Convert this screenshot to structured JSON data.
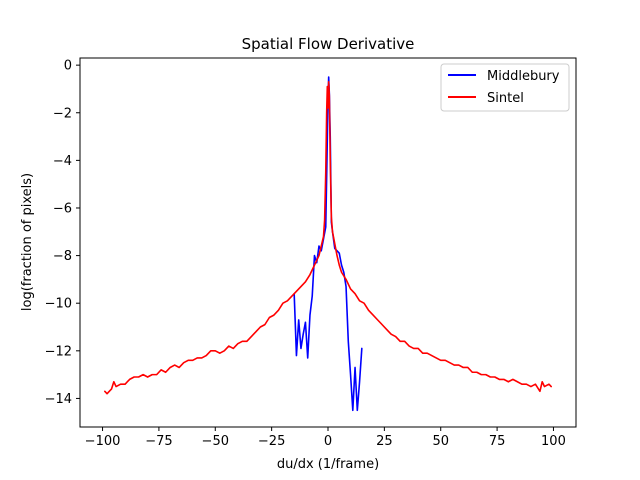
{
  "chart_data": {
    "type": "line",
    "title": "Spatial Flow Derivative",
    "xlabel": "du/dx (1/frame)",
    "ylabel": "log(fraction of pixels)",
    "xlim": [
      -110,
      110
    ],
    "ylim": [
      -15.2,
      0.3
    ],
    "xticks": [
      -100,
      -75,
      -50,
      -25,
      0,
      25,
      50,
      75,
      100
    ],
    "xtick_labels": [
      "−100",
      "−75",
      "−50",
      "−25",
      "0",
      "25",
      "50",
      "75",
      "100"
    ],
    "yticks": [
      0,
      -2,
      -4,
      -6,
      -8,
      -10,
      -12,
      -14
    ],
    "ytick_labels": [
      "0",
      "−2",
      "−4",
      "−6",
      "−8",
      "−10",
      "−12",
      "−14"
    ],
    "grid": false,
    "legend_position": "top-right",
    "series": [
      {
        "name": "Middlebury",
        "color": "#0000ff",
        "points": [
          [
            -15,
            -9.6
          ],
          [
            -14,
            -12.2
          ],
          [
            -13,
            -10.7
          ],
          [
            -12,
            -11.9
          ],
          [
            -11,
            -11.3
          ],
          [
            -10,
            -10.8
          ],
          [
            -9,
            -12.3
          ],
          [
            -8,
            -10.5
          ],
          [
            -7,
            -9.7
          ],
          [
            -6,
            -8.0
          ],
          [
            -5,
            -8.3
          ],
          [
            -4,
            -7.6
          ],
          [
            -3,
            -7.8
          ],
          [
            -2,
            -7.3
          ],
          [
            -1,
            -6.8
          ],
          [
            -0.5,
            -4.2
          ],
          [
            0,
            -1.4
          ],
          [
            0.3,
            -0.5
          ],
          [
            0.6,
            -1.2
          ],
          [
            1,
            -3.0
          ],
          [
            1.5,
            -6.6
          ],
          [
            2,
            -7.0
          ],
          [
            3,
            -7.7
          ],
          [
            4,
            -7.8
          ],
          [
            5,
            -7.9
          ],
          [
            6,
            -8.4
          ],
          [
            7,
            -8.7
          ],
          [
            8,
            -9.3
          ],
          [
            9,
            -11.6
          ],
          [
            10,
            -13.0
          ],
          [
            11,
            -14.5
          ],
          [
            12,
            -12.7
          ],
          [
            13,
            -14.5
          ],
          [
            14,
            -13.3
          ],
          [
            15,
            -11.9
          ]
        ]
      },
      {
        "name": "Sintel",
        "color": "#ff0000",
        "points": [
          [
            -99,
            -13.7
          ],
          [
            -98,
            -13.8
          ],
          [
            -96,
            -13.6
          ],
          [
            -95,
            -13.3
          ],
          [
            -94,
            -13.5
          ],
          [
            -92,
            -13.4
          ],
          [
            -90,
            -13.4
          ],
          [
            -88,
            -13.2
          ],
          [
            -86,
            -13.1
          ],
          [
            -84,
            -13.1
          ],
          [
            -82,
            -13.0
          ],
          [
            -80,
            -13.1
          ],
          [
            -78,
            -13.0
          ],
          [
            -76,
            -13.0
          ],
          [
            -74,
            -12.8
          ],
          [
            -72,
            -12.9
          ],
          [
            -70,
            -12.7
          ],
          [
            -68,
            -12.6
          ],
          [
            -66,
            -12.7
          ],
          [
            -64,
            -12.5
          ],
          [
            -62,
            -12.4
          ],
          [
            -60,
            -12.4
          ],
          [
            -58,
            -12.3
          ],
          [
            -56,
            -12.3
          ],
          [
            -54,
            -12.2
          ],
          [
            -52,
            -12.0
          ],
          [
            -50,
            -12.0
          ],
          [
            -48,
            -12.1
          ],
          [
            -46,
            -12.0
          ],
          [
            -44,
            -11.8
          ],
          [
            -42,
            -11.9
          ],
          [
            -40,
            -11.7
          ],
          [
            -38,
            -11.6
          ],
          [
            -36,
            -11.6
          ],
          [
            -34,
            -11.4
          ],
          [
            -32,
            -11.2
          ],
          [
            -30,
            -11.0
          ],
          [
            -28,
            -10.9
          ],
          [
            -26,
            -10.6
          ],
          [
            -24,
            -10.5
          ],
          [
            -22,
            -10.3
          ],
          [
            -20,
            -10.0
          ],
          [
            -18,
            -9.9
          ],
          [
            -16,
            -9.7
          ],
          [
            -14,
            -9.5
          ],
          [
            -12,
            -9.3
          ],
          [
            -10,
            -9.1
          ],
          [
            -8,
            -8.8
          ],
          [
            -6,
            -8.4
          ],
          [
            -4,
            -8.0
          ],
          [
            -3,
            -7.6
          ],
          [
            -2,
            -7.2
          ],
          [
            -1.5,
            -6.5
          ],
          [
            -1,
            -4.5
          ],
          [
            -0.6,
            -2.0
          ],
          [
            -0.3,
            -0.9
          ],
          [
            0,
            -1.8
          ],
          [
            0.3,
            -0.7
          ],
          [
            0.6,
            -1.3
          ],
          [
            1,
            -4.0
          ],
          [
            1.5,
            -6.4
          ],
          [
            2,
            -7.0
          ],
          [
            3,
            -7.5
          ],
          [
            4,
            -8.0
          ],
          [
            5,
            -8.4
          ],
          [
            6,
            -8.7
          ],
          [
            8,
            -9.0
          ],
          [
            10,
            -9.4
          ],
          [
            12,
            -9.6
          ],
          [
            14,
            -9.9
          ],
          [
            16,
            -10.0
          ],
          [
            18,
            -10.3
          ],
          [
            20,
            -10.5
          ],
          [
            22,
            -10.7
          ],
          [
            24,
            -10.9
          ],
          [
            26,
            -11.1
          ],
          [
            28,
            -11.3
          ],
          [
            30,
            -11.4
          ],
          [
            32,
            -11.6
          ],
          [
            34,
            -11.6
          ],
          [
            36,
            -11.8
          ],
          [
            38,
            -11.9
          ],
          [
            40,
            -11.9
          ],
          [
            42,
            -12.1
          ],
          [
            44,
            -12.1
          ],
          [
            46,
            -12.2
          ],
          [
            48,
            -12.3
          ],
          [
            50,
            -12.4
          ],
          [
            52,
            -12.4
          ],
          [
            54,
            -12.5
          ],
          [
            56,
            -12.6
          ],
          [
            58,
            -12.6
          ],
          [
            60,
            -12.7
          ],
          [
            62,
            -12.7
          ],
          [
            64,
            -12.9
          ],
          [
            66,
            -12.9
          ],
          [
            68,
            -13.0
          ],
          [
            70,
            -13.0
          ],
          [
            72,
            -13.1
          ],
          [
            74,
            -13.1
          ],
          [
            76,
            -13.2
          ],
          [
            78,
            -13.2
          ],
          [
            80,
            -13.3
          ],
          [
            82,
            -13.2
          ],
          [
            84,
            -13.3
          ],
          [
            86,
            -13.4
          ],
          [
            88,
            -13.4
          ],
          [
            90,
            -13.5
          ],
          [
            92,
            -13.4
          ],
          [
            94,
            -13.7
          ],
          [
            95,
            -13.3
          ],
          [
            96,
            -13.5
          ],
          [
            98,
            -13.4
          ],
          [
            99,
            -13.5
          ]
        ]
      }
    ]
  }
}
